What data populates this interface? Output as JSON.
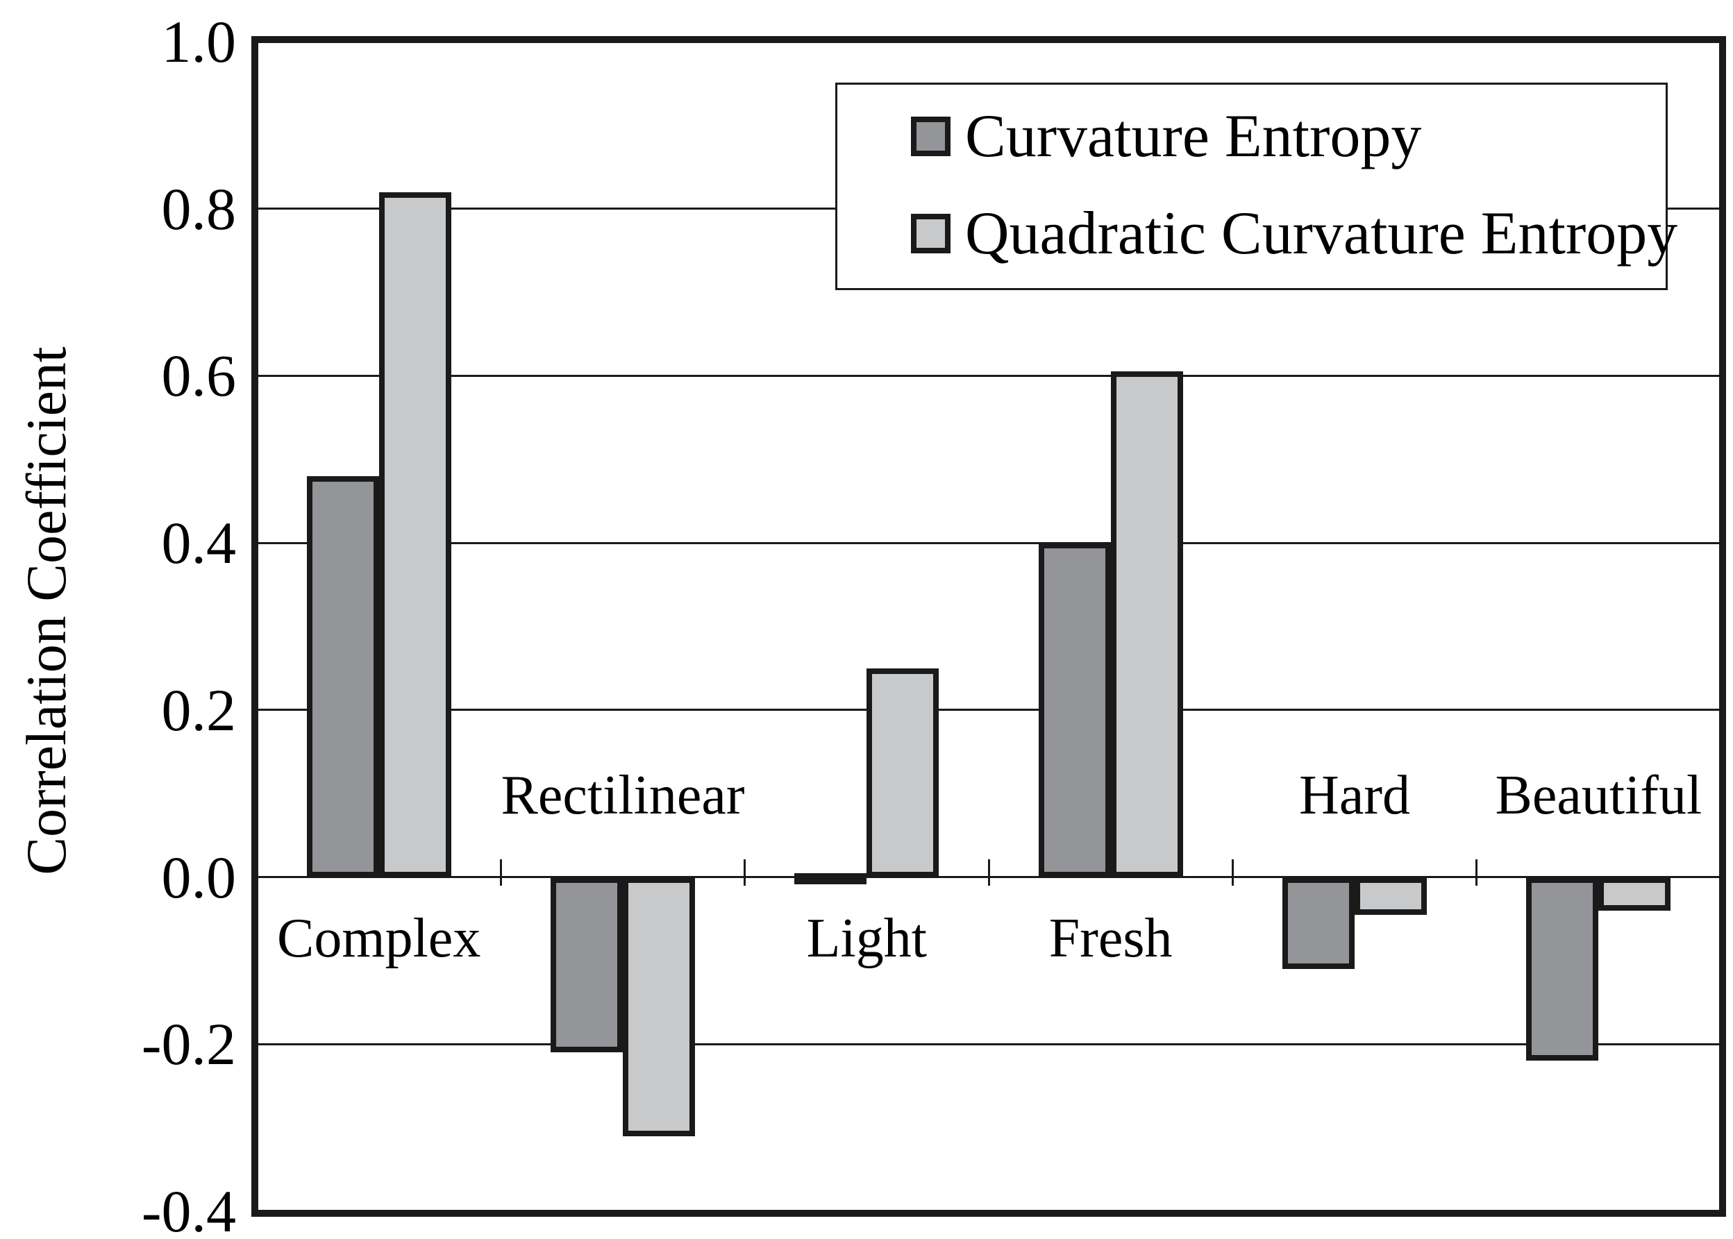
{
  "chart_data": {
    "type": "bar",
    "title": "",
    "ylabel": "Correlation Coefficient",
    "xlabel": "",
    "categories": [
      "Complex",
      "Rectilinear",
      "Light",
      "Fresh",
      "Hard",
      "Beautiful"
    ],
    "series": [
      {
        "name": "Curvature Entropy",
        "color": "#949598",
        "values": [
          0.48,
          -0.21,
          0.005,
          0.4,
          -0.11,
          -0.22
        ]
      },
      {
        "name": "Quadratic Curvature Entropy",
        "color": "#c8c9cb",
        "values": [
          0.82,
          -0.31,
          0.25,
          0.605,
          -0.045,
          -0.04
        ]
      }
    ],
    "ylim": [
      -0.4,
      1.0
    ],
    "ytick_interval": 0.2,
    "ytick_labels": [
      "1.0",
      "0.8",
      "0.6",
      "0.4",
      "0.2",
      "0.0",
      "-0.2",
      "-0.4"
    ],
    "grid": "horizontal",
    "legend_position": "top-right",
    "line_color": "#1a1a1a",
    "text_color": "#000000",
    "background_color": "#ffffff"
  }
}
